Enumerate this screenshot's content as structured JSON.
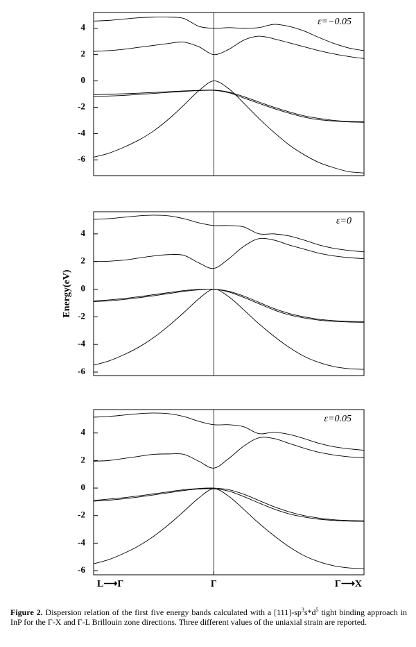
{
  "chart_data": [
    {
      "type": "line",
      "annotation": "ε=−0.05",
      "x": [
        -0.8,
        -0.7,
        -0.6,
        -0.5,
        -0.4,
        -0.3,
        -0.2,
        -0.1,
        0,
        0.1,
        0.2,
        0.3,
        0.4,
        0.5,
        0.6,
        0.7,
        0.8,
        0.9,
        1.0
      ],
      "xlim": [
        -0.8,
        1
      ],
      "vline": 0,
      "ylim": [
        -7.2,
        5.2
      ],
      "yticks": [
        -6,
        -4,
        -2,
        0,
        2,
        4
      ],
      "series": [
        {
          "color": "#000",
          "values": [
            4.55,
            4.6,
            4.7,
            4.8,
            4.85,
            4.85,
            4.75,
            4.15,
            4.0,
            4.05,
            4.0,
            4.05,
            4.3,
            4.15,
            3.8,
            3.3,
            2.85,
            2.5,
            2.3
          ]
        },
        {
          "color": "#000",
          "values": [
            2.25,
            2.3,
            2.4,
            2.55,
            2.7,
            2.85,
            2.95,
            2.6,
            2.0,
            2.4,
            3.1,
            3.4,
            3.2,
            2.9,
            2.6,
            2.3,
            2.05,
            1.85,
            1.7
          ]
        },
        {
          "color": "#000",
          "values": [
            -1.05,
            -1.02,
            -0.98,
            -0.93,
            -0.88,
            -0.82,
            -0.76,
            -0.72,
            -0.7,
            -0.85,
            -1.2,
            -1.6,
            -2.0,
            -2.35,
            -2.65,
            -2.85,
            -3.0,
            -3.08,
            -3.1
          ]
        },
        {
          "color": "#000",
          "values": [
            -1.2,
            -1.15,
            -1.1,
            -1.03,
            -0.95,
            -0.87,
            -0.8,
            -0.74,
            -0.72,
            -0.9,
            -1.3,
            -1.7,
            -2.1,
            -2.45,
            -2.75,
            -2.95,
            -3.05,
            -3.12,
            -3.15
          ]
        },
        {
          "color": "#000",
          "values": [
            -5.8,
            -5.5,
            -5.05,
            -4.5,
            -3.8,
            -2.9,
            -1.85,
            -0.75,
            0,
            -0.6,
            -1.7,
            -2.85,
            -3.9,
            -4.85,
            -5.6,
            -6.2,
            -6.6,
            -6.9,
            -7.0
          ]
        }
      ]
    },
    {
      "type": "line",
      "annotation": "ε=0",
      "ylabel": "Energy(eV)",
      "x": [
        -0.8,
        -0.7,
        -0.6,
        -0.5,
        -0.4,
        -0.3,
        -0.2,
        -0.1,
        0,
        0.1,
        0.2,
        0.3,
        0.4,
        0.5,
        0.6,
        0.7,
        0.8,
        0.9,
        1.0
      ],
      "xlim": [
        -0.8,
        1
      ],
      "vline": 0,
      "ylim": [
        -6.25,
        5.6
      ],
      "yticks": [
        -6,
        -4,
        -2,
        0,
        2,
        4
      ],
      "series": [
        {
          "color": "#000",
          "values": [
            5.05,
            5.1,
            5.2,
            5.3,
            5.35,
            5.3,
            5.1,
            4.8,
            4.6,
            4.6,
            4.5,
            4.0,
            4.0,
            3.85,
            3.55,
            3.2,
            2.95,
            2.8,
            2.7
          ]
        },
        {
          "color": "#000",
          "values": [
            2.0,
            2.02,
            2.1,
            2.25,
            2.4,
            2.5,
            2.45,
            1.9,
            1.5,
            2.2,
            3.1,
            3.65,
            3.55,
            3.2,
            2.9,
            2.6,
            2.4,
            2.28,
            2.2
          ]
        },
        {
          "color": "#000",
          "values": [
            -0.85,
            -0.78,
            -0.68,
            -0.55,
            -0.4,
            -0.25,
            -0.1,
            -0.02,
            0,
            -0.15,
            -0.5,
            -0.95,
            -1.4,
            -1.75,
            -2.0,
            -2.18,
            -2.28,
            -2.33,
            -2.35
          ]
        },
        {
          "color": "#000",
          "values": [
            -0.9,
            -0.85,
            -0.75,
            -0.62,
            -0.48,
            -0.32,
            -0.16,
            -0.05,
            0,
            -0.2,
            -0.6,
            -1.05,
            -1.5,
            -1.85,
            -2.08,
            -2.24,
            -2.33,
            -2.38,
            -2.4
          ]
        },
        {
          "color": "#000",
          "values": [
            -5.5,
            -5.2,
            -4.75,
            -4.2,
            -3.5,
            -2.65,
            -1.7,
            -0.7,
            0,
            -0.55,
            -1.5,
            -2.5,
            -3.4,
            -4.2,
            -4.85,
            -5.3,
            -5.6,
            -5.75,
            -5.8
          ]
        }
      ]
    },
    {
      "type": "line",
      "annotation": "ε=0.05",
      "x": [
        -0.8,
        -0.7,
        -0.6,
        -0.5,
        -0.4,
        -0.3,
        -0.2,
        -0.1,
        0,
        0.1,
        0.2,
        0.3,
        0.4,
        0.5,
        0.6,
        0.7,
        0.8,
        0.9,
        1.0
      ],
      "xlim": [
        -0.8,
        1
      ],
      "vline": 0,
      "ylim": [
        -6.3,
        5.7
      ],
      "yticks": [
        -6,
        -4,
        -2,
        0,
        2,
        4
      ],
      "xticks": [
        {
          "value": -0.8,
          "label": "L⟶Γ"
        },
        {
          "value": 0,
          "label": "Γ"
        },
        {
          "value": 1,
          "label": "Γ⟶X"
        }
      ],
      "series": [
        {
          "color": "#000",
          "values": [
            5.15,
            5.2,
            5.3,
            5.4,
            5.45,
            5.4,
            5.2,
            4.85,
            4.6,
            4.6,
            4.45,
            3.95,
            4.05,
            3.9,
            3.6,
            3.25,
            3.0,
            2.85,
            2.75
          ]
        },
        {
          "color": "#000",
          "values": [
            1.95,
            2.0,
            2.15,
            2.3,
            2.45,
            2.48,
            2.45,
            1.95,
            1.45,
            2.15,
            3.05,
            3.65,
            3.6,
            3.25,
            2.9,
            2.6,
            2.4,
            2.27,
            2.2
          ]
        },
        {
          "color": "#000",
          "values": [
            -0.9,
            -0.8,
            -0.7,
            -0.57,
            -0.42,
            -0.27,
            -0.12,
            -0.03,
            0,
            -0.12,
            -0.45,
            -0.9,
            -1.35,
            -1.72,
            -2.0,
            -2.18,
            -2.3,
            -2.36,
            -2.38
          ]
        },
        {
          "color": "#000",
          "values": [
            -0.95,
            -0.88,
            -0.78,
            -0.65,
            -0.5,
            -0.34,
            -0.18,
            -0.07,
            -0.05,
            -0.22,
            -0.62,
            -1.08,
            -1.52,
            -1.87,
            -2.1,
            -2.26,
            -2.35,
            -2.4,
            -2.42
          ]
        },
        {
          "color": "#000",
          "values": [
            -5.5,
            -5.2,
            -4.75,
            -4.2,
            -3.5,
            -2.65,
            -1.7,
            -0.72,
            -0.05,
            -0.6,
            -1.55,
            -2.55,
            -3.45,
            -4.25,
            -4.9,
            -5.35,
            -5.65,
            -5.8,
            -5.85
          ]
        }
      ]
    }
  ],
  "caption": {
    "label": "Figure 2.",
    "text1": " Dispersion relation of the first five energy bands calculated with a [111]-sp",
    "sup1": "3",
    "text2": "s*d",
    "sup2": "5",
    "text3": " tight binding approach in InP for the Γ-X and Γ-L Brillouin zone directions. Three different values of the uniaxial strain are reported."
  }
}
